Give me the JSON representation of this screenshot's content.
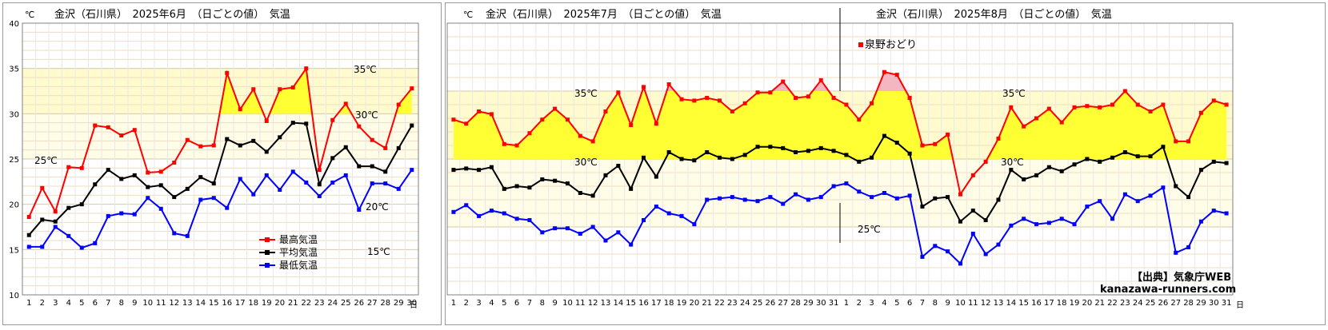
{
  "chart_data": [
    {
      "type": "line",
      "title": "金沢（石川県）　2025年6月　（日ごとの値）　気温",
      "unit_label": "℃",
      "day_suffix": "日",
      "ylim": [
        10,
        40
      ],
      "yticks": [
        10,
        15,
        20,
        25,
        30,
        35,
        40
      ],
      "categories": [
        "1",
        "2",
        "3",
        "4",
        "5",
        "6",
        "7",
        "8",
        "9",
        "10",
        "11",
        "12",
        "13",
        "14",
        "15",
        "16",
        "17",
        "18",
        "19",
        "20",
        "21",
        "22",
        "23",
        "24",
        "25",
        "26",
        "27",
        "28",
        "29",
        "30"
      ],
      "series": [
        {
          "name": "最高気温",
          "color": "#ff0000",
          "values": [
            18.6,
            21.8,
            19.2,
            24.1,
            24.0,
            28.7,
            28.5,
            27.6,
            28.2,
            23.5,
            23.6,
            24.6,
            27.1,
            26.4,
            26.5,
            34.5,
            30.5,
            32.7,
            29.2,
            32.7,
            32.9,
            35.0,
            23.8,
            29.3,
            31.1,
            28.6,
            27.1,
            26.2,
            31.0,
            32.8
          ]
        },
        {
          "name": "平均気温",
          "color": "#000000",
          "values": [
            16.6,
            18.3,
            18.1,
            19.6,
            20.0,
            22.2,
            23.8,
            22.8,
            23.2,
            21.9,
            22.1,
            20.8,
            21.7,
            23.0,
            22.3,
            27.2,
            26.5,
            27.0,
            25.8,
            27.4,
            29.0,
            28.9,
            22.2,
            25.1,
            26.3,
            24.2,
            24.2,
            23.6,
            26.2,
            28.7
          ]
        },
        {
          "name": "最低気温",
          "color": "#0000ff",
          "values": [
            15.3,
            15.3,
            17.5,
            16.5,
            15.2,
            15.7,
            18.7,
            19.0,
            18.9,
            20.7,
            19.5,
            16.8,
            16.5,
            20.5,
            20.7,
            19.6,
            22.8,
            21.1,
            23.2,
            21.6,
            23.6,
            22.4,
            20.9,
            22.4,
            23.2,
            19.4,
            22.3,
            22.3,
            21.7,
            23.8
          ]
        }
      ],
      "legend": [
        "最高気温",
        "平均気温",
        "最低気温"
      ],
      "annotations": [
        "35℃",
        "30℃",
        "25℃",
        "20℃",
        "15℃"
      ]
    },
    {
      "type": "line",
      "titles": [
        "金沢（石川県）　2025年7月　（日ごとの値）　気温",
        "金沢（石川県）　2025年8月　（日ごとの値）　気温"
      ],
      "unit_label": "℃",
      "day_suffix": "日",
      "ylim": [
        20,
        40
      ],
      "yticks": [
        20,
        25,
        30,
        35,
        40
      ],
      "categories": [
        "1",
        "2",
        "3",
        "4",
        "5",
        "6",
        "7",
        "8",
        "9",
        "10",
        "11",
        "12",
        "13",
        "14",
        "15",
        "16",
        "17",
        "18",
        "19",
        "20",
        "21",
        "22",
        "23",
        "24",
        "25",
        "26",
        "27",
        "28",
        "29",
        "30",
        "31",
        "1",
        "2",
        "3",
        "4",
        "5",
        "6",
        "7",
        "8",
        "9",
        "10",
        "11",
        "12",
        "13",
        "14",
        "15",
        "16",
        "17",
        "18",
        "19",
        "20",
        "21",
        "22",
        "23",
        "24",
        "25",
        "26",
        "27",
        "28",
        "29",
        "30",
        "31"
      ],
      "series": [
        {
          "name": "最高気温",
          "color": "#ff0000",
          "values": [
            32.9,
            32.6,
            33.5,
            33.3,
            31.1,
            31.0,
            31.9,
            32.9,
            33.7,
            32.9,
            31.7,
            31.3,
            33.5,
            34.9,
            32.5,
            35.3,
            32.6,
            35.5,
            34.4,
            34.3,
            34.5,
            34.3,
            33.5,
            34.1,
            34.9,
            34.9,
            35.7,
            34.5,
            34.6,
            35.8,
            34.5,
            34.0,
            32.9,
            34.1,
            36.4,
            36.2,
            34.5,
            31.0,
            31.1,
            31.8,
            27.4,
            28.8,
            29.8,
            31.5,
            33.8,
            32.4,
            33.0,
            33.7,
            32.7,
            33.8,
            33.9,
            33.8,
            34.0,
            35.0,
            34.0,
            33.5,
            34.0,
            31.3,
            31.3,
            33.4,
            34.3,
            34.0
          ]
        },
        {
          "name": "平均気温",
          "color": "#000000",
          "values": [
            29.2,
            29.3,
            29.2,
            29.4,
            27.8,
            28.0,
            27.9,
            28.5,
            28.4,
            28.2,
            27.5,
            27.3,
            28.8,
            29.5,
            27.8,
            30.1,
            28.7,
            30.5,
            30.0,
            29.9,
            30.5,
            30.1,
            30.0,
            30.3,
            30.9,
            30.9,
            30.8,
            30.5,
            30.6,
            30.8,
            30.6,
            30.3,
            29.8,
            30.1,
            31.7,
            31.2,
            30.4,
            26.5,
            27.1,
            27.2,
            25.4,
            26.2,
            25.5,
            27.0,
            29.2,
            28.5,
            28.8,
            29.4,
            29.1,
            29.6,
            30.0,
            29.8,
            30.1,
            30.5,
            30.2,
            30.2,
            30.9,
            28.0,
            27.2,
            29.2,
            29.8,
            29.7
          ]
        },
        {
          "name": "最低気温",
          "color": "#0000ff",
          "values": [
            26.1,
            26.6,
            25.8,
            26.2,
            26.0,
            25.6,
            25.5,
            24.6,
            24.9,
            24.9,
            24.5,
            25.0,
            24.0,
            24.6,
            23.7,
            25.5,
            26.5,
            26.0,
            25.8,
            25.2,
            27.0,
            27.1,
            27.2,
            27.0,
            26.9,
            27.2,
            26.7,
            27.4,
            27.0,
            27.2,
            28.0,
            28.2,
            27.6,
            27.2,
            27.5,
            27.1,
            27.3,
            22.8,
            23.6,
            23.2,
            22.3,
            24.5,
            23.0,
            23.7,
            25.1,
            25.6,
            25.2,
            25.3,
            25.6,
            25.2,
            26.5,
            26.9,
            25.6,
            27.4,
            26.9,
            27.3,
            27.9,
            23.1,
            23.5,
            25.4,
            26.2,
            26.0
          ]
        }
      ],
      "annotations": [
        "35℃",
        "30℃",
        "25℃"
      ],
      "event_label": "泉野おどり",
      "source_label": "【出典】気象庁WEB",
      "site_label": "kanazawa-runners.com"
    }
  ]
}
